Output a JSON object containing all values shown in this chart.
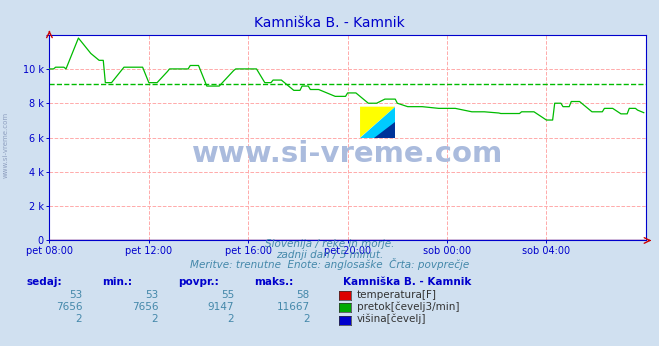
{
  "title": "Kamniška B. - Kamnik",
  "title_color": "#0000cc",
  "bg_color": "#d0e0f0",
  "plot_bg_color": "#ffffff",
  "grid_color": "#ffaaaa",
  "avg_line_color": "#00bb00",
  "avg_line_value": 9147,
  "ylim": [
    0,
    12000
  ],
  "yticks": [
    0,
    2000,
    4000,
    6000,
    8000,
    10000,
    12000
  ],
  "ytick_labels": [
    "0",
    "2 k",
    "4 k",
    "6 k",
    "8 k",
    "10 k",
    ""
  ],
  "xtick_labels": [
    "pet 08:00",
    "pet 12:00",
    "pet 16:00",
    "pet 20:00",
    "sob 00:00",
    "sob 04:00"
  ],
  "xtick_positions": [
    0,
    48,
    96,
    144,
    192,
    240
  ],
  "total_points": 288,
  "subtitle1": "Slovenija / reke in morje.",
  "subtitle2": "zadnji dan / 5 minut.",
  "subtitle3": "Meritve: trenutne  Enote: anglosaške  Črta: povprečje",
  "watermark": "www.si-vreme.com",
  "watermark_color": "#aabbdd",
  "side_watermark": "www.si-vreme.com",
  "legend_title": "Kamniška B. - Kamnik",
  "legend_items": [
    {
      "label": "temperatura[F]",
      "color": "#dd0000"
    },
    {
      "label": "pretok[čevelj3/min]",
      "color": "#00aa00"
    },
    {
      "label": "višina[čevelj]",
      "color": "#0000cc"
    }
  ],
  "table_headers": [
    "sedaj:",
    "min.:",
    "povpr.:",
    "maks.:"
  ],
  "table_data": [
    [
      53,
      53,
      55,
      58
    ],
    [
      7656,
      7656,
      9147,
      11667
    ],
    [
      2,
      2,
      2,
      2
    ]
  ],
  "flow_color": "#00bb00",
  "temp_color": "#cc0000",
  "height_color": "#0000cc",
  "axis_color": "#0000cc",
  "arrow_color": "#cc0000"
}
